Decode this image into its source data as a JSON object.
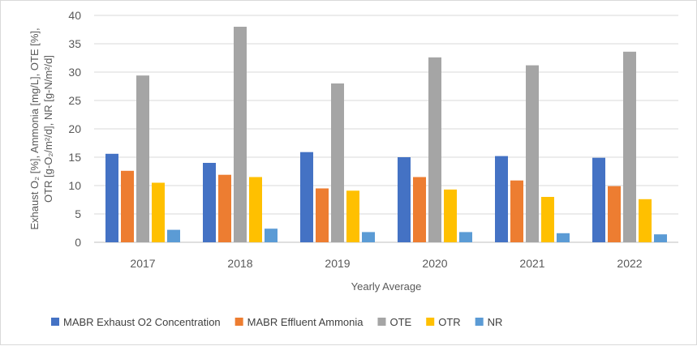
{
  "chart_data": {
    "type": "bar",
    "title": "",
    "xlabel": "Yearly Average",
    "ylabel": "Exhaust O₂ [%], Ammonia [mg/L], OTE [%], OTR [g-O₂/m²/d], NR [g-N/m²/d]",
    "ylim": [
      0,
      40
    ],
    "yticks": [
      0,
      5,
      10,
      15,
      20,
      25,
      30,
      35,
      40
    ],
    "categories": [
      "2017",
      "2018",
      "2019",
      "2020",
      "2021",
      "2022"
    ],
    "grid": true,
    "legend_position": "bottom",
    "series": [
      {
        "name": "MABR Exhaust O2 Concentration",
        "color": "#4472c4",
        "values": [
          15.6,
          14.0,
          15.9,
          15.0,
          15.2,
          14.9
        ]
      },
      {
        "name": "MABR Effluent Ammonia",
        "color": "#ed7d31",
        "values": [
          12.6,
          11.9,
          9.5,
          11.5,
          10.9,
          9.9
        ]
      },
      {
        "name": "OTE",
        "color": "#a5a5a5",
        "values": [
          29.4,
          38.0,
          28.0,
          32.6,
          31.2,
          33.6
        ]
      },
      {
        "name": "OTR",
        "color": "#ffc000",
        "values": [
          10.5,
          11.5,
          9.1,
          9.3,
          8.0,
          7.6
        ]
      },
      {
        "name": "NR",
        "color": "#5b9bd5",
        "values": [
          2.2,
          2.4,
          1.8,
          1.8,
          1.6,
          1.4
        ]
      }
    ]
  }
}
